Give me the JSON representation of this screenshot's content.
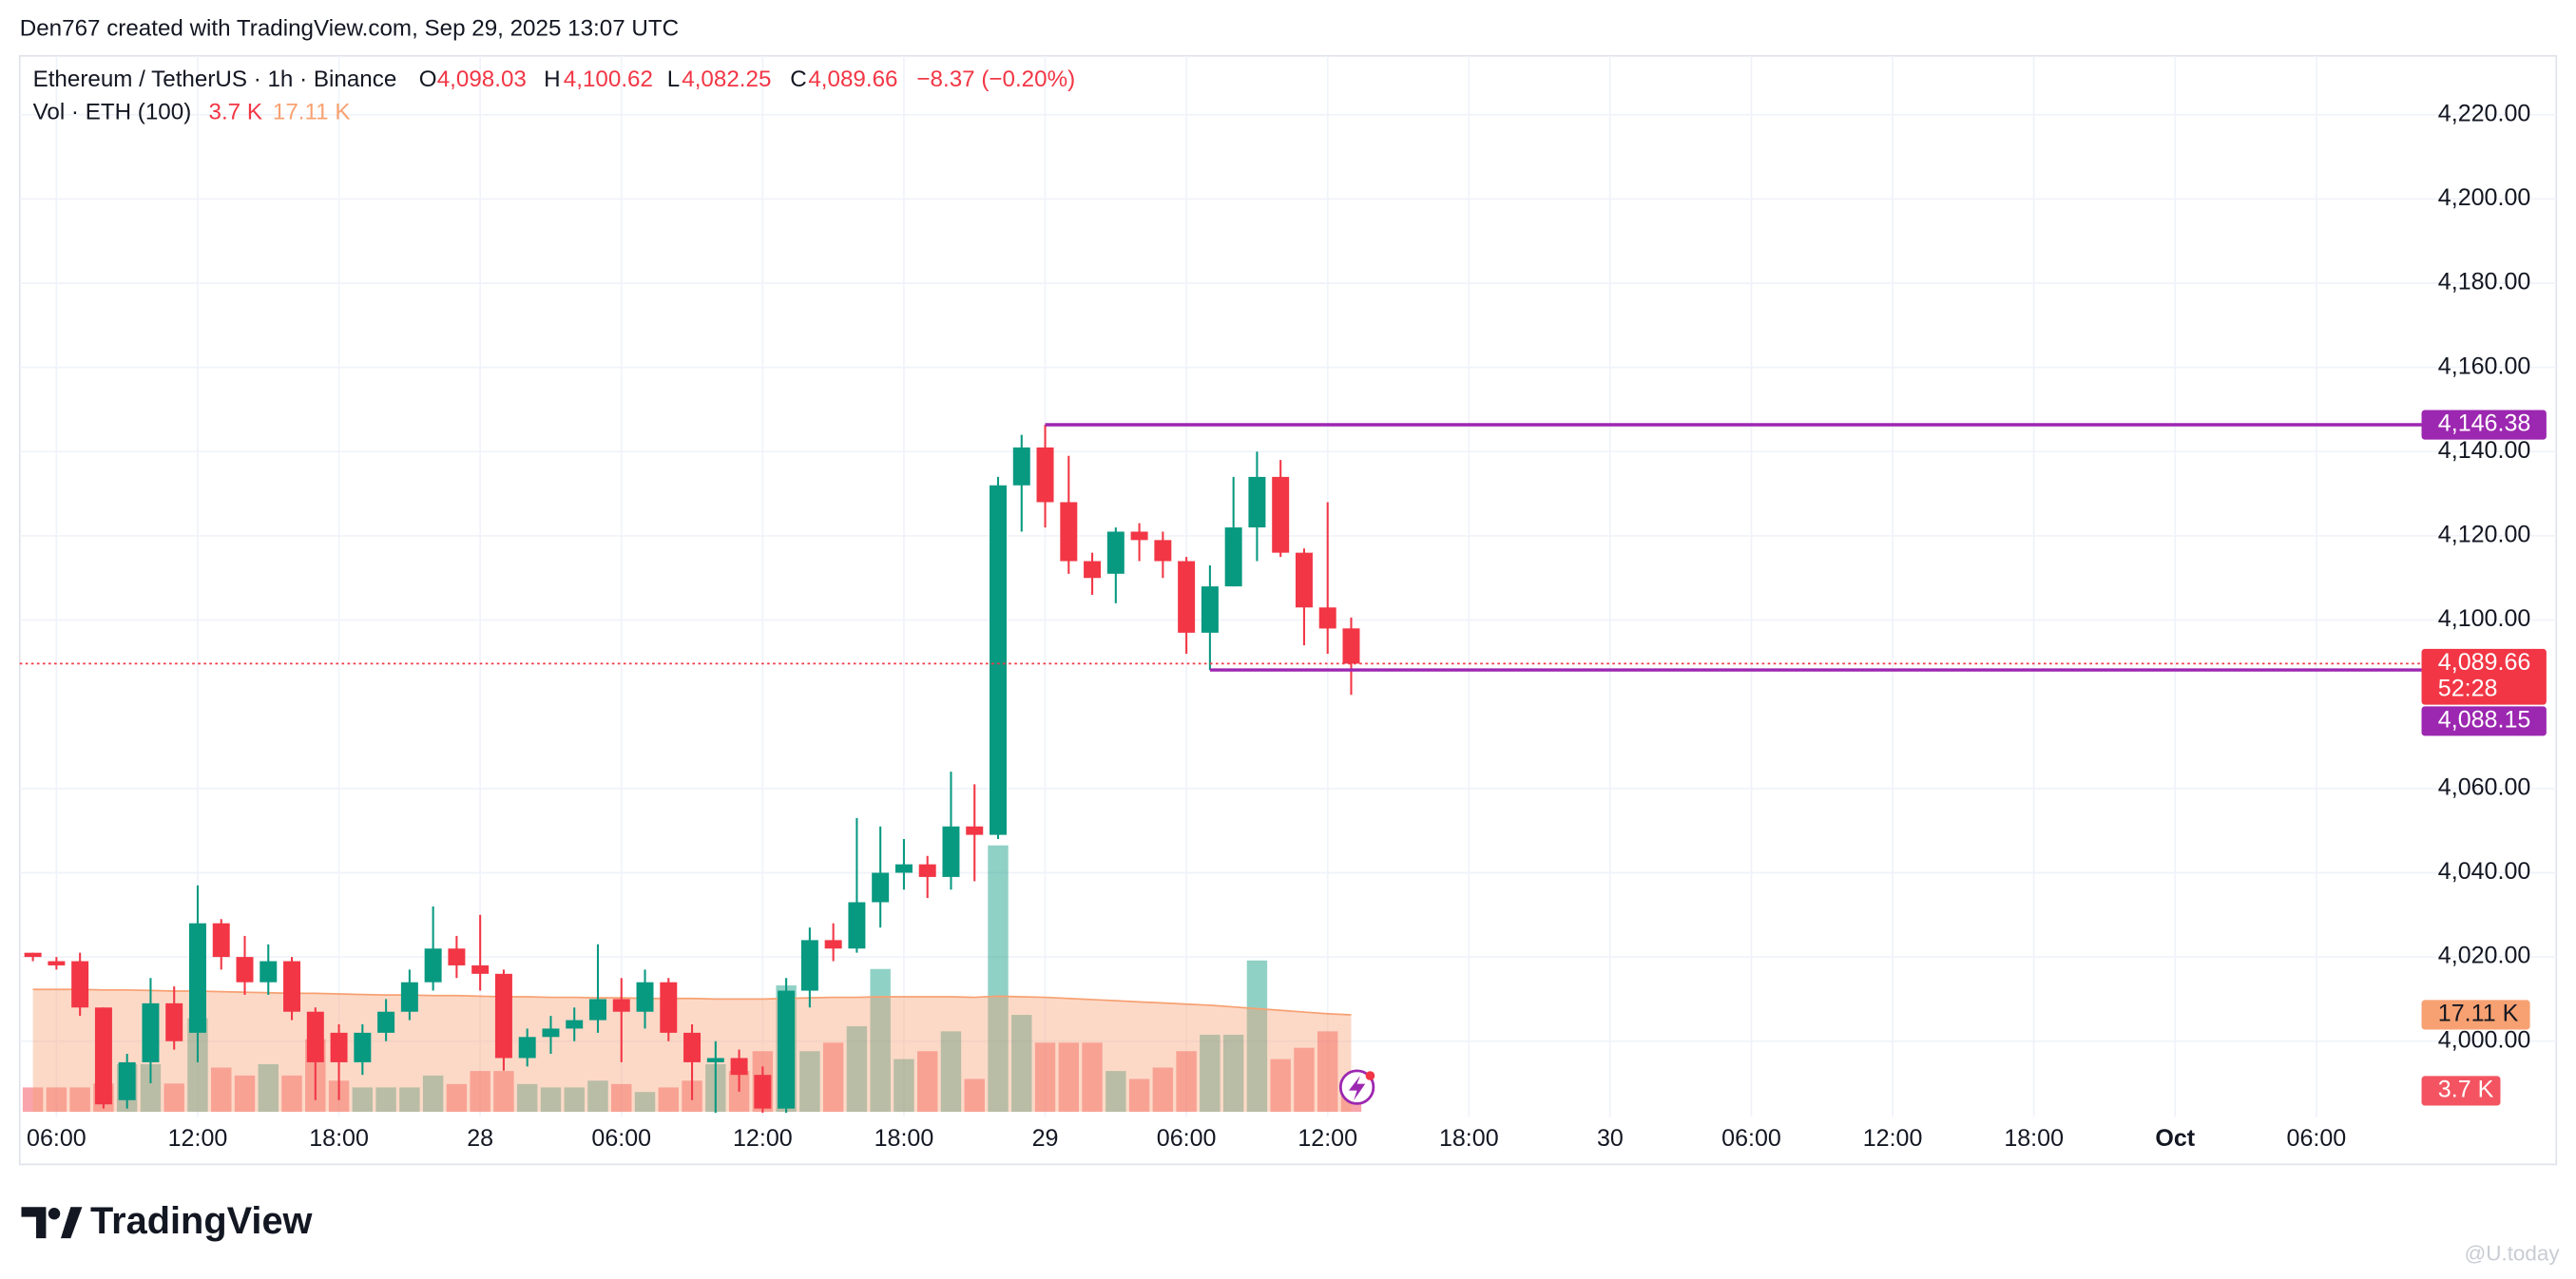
{
  "attribution": "Den767 created with TradingView.com, Sep 29, 2025 13:07 UTC",
  "brand": "TradingView",
  "watermark": "@U.today",
  "chart_data": {
    "type": "candlestick",
    "title": "Ethereum / TetherUS · 1h · Binance",
    "legend": {
      "o": "O",
      "open": "4,098.03",
      "h": "H",
      "high": "4,100.62",
      "l": "L",
      "low": "4,082.25",
      "c": "C",
      "close": "4,089.66",
      "change": "−8.37 (−0.20%)"
    },
    "up_color": "#089981",
    "down_color": "#f23645",
    "candles": {
      "open": [
        4021,
        4019,
        4019,
        4008,
        3986,
        3995,
        4009,
        4002,
        4028,
        4020,
        4014,
        4019,
        4007,
        4002,
        3995,
        4002,
        4007,
        4014,
        4022,
        4018,
        4016,
        3996,
        4001,
        4003,
        4005,
        4010,
        4007,
        4014,
        4002,
        3995,
        3996,
        3992,
        3984,
        4012,
        4024,
        4022,
        4033,
        4040,
        4042,
        4039,
        4051,
        4049,
        4132,
        4141,
        4128,
        4114,
        4111,
        4121,
        4119,
        4114,
        4097,
        4108,
        4122,
        4134,
        4116,
        4103,
        4098.03
      ],
      "high": [
        4021,
        4020,
        4021,
        4008,
        3997,
        4015,
        4013,
        4037,
        4029,
        4025,
        4023,
        4020,
        4008,
        4004,
        4004,
        4010,
        4017,
        4032,
        4025,
        4030,
        4017,
        4003,
        4006,
        4008,
        4023,
        4015,
        4017,
        4015,
        4004,
        4000,
        3998,
        3994,
        4015,
        4027,
        4028,
        4053,
        4051,
        4048,
        4044,
        4064,
        4061,
        4134,
        4144,
        4146.38,
        4139,
        4116,
        4122,
        4123,
        4121,
        4115,
        4113,
        4134,
        4140,
        4138,
        4117,
        4128,
        4100.62
      ],
      "low": [
        4019,
        4017,
        4006,
        3984,
        3984,
        3990,
        3998,
        3995,
        4017,
        4011,
        4011,
        4005,
        3986,
        3986,
        3992,
        4000,
        4005,
        4012,
        4015,
        4012,
        3993,
        3994,
        3997,
        4000,
        4002,
        3995,
        4003,
        4000,
        3986,
        3983,
        3988,
        3983,
        3983,
        4008,
        4019,
        4021,
        4027,
        4036,
        4034,
        4036,
        4038,
        4048,
        4121,
        4122,
        4111,
        4106,
        4104,
        4114,
        4110,
        4092,
        4088.15,
        4108,
        4114,
        4115,
        4094,
        4092,
        4082.25
      ],
      "close": [
        4020,
        4018,
        4008,
        3985,
        3995,
        4009,
        4000,
        4028,
        4020,
        4014,
        4019,
        4007,
        3995,
        3995,
        4002,
        4007,
        4014,
        4022,
        4018,
        4016,
        3996,
        4001,
        4003,
        4005,
        4010,
        4007,
        4014,
        4002,
        3995,
        3996,
        3992,
        3984,
        4012,
        4024,
        4022,
        4033,
        4040,
        4042,
        4039,
        4051,
        4049,
        4132,
        4141,
        4128,
        4114,
        4110,
        4121,
        4119,
        4114,
        4097,
        4108,
        4122,
        4134,
        4116,
        4103,
        4098,
        4089.66
      ]
    },
    "close_label": "4,089.66",
    "countdown": "52:28",
    "volume": {
      "title": "Vol · ETH (100)",
      "values": [
        4.3,
        4.3,
        4.3,
        5,
        8.4,
        8.4,
        5,
        16.5,
        7.8,
        6.4,
        8.4,
        6.4,
        12.8,
        5.5,
        4.3,
        4.3,
        4.3,
        6.4,
        4.9,
        7.2,
        7.2,
        4.9,
        4.3,
        4.3,
        5.5,
        4.9,
        3.5,
        4.3,
        5.5,
        8.4,
        7.2,
        10.7,
        22.3,
        10.7,
        12.2,
        15.1,
        25.2,
        9.3,
        10.7,
        14.2,
        5.8,
        47,
        17.1,
        12.2,
        12.2,
        12.2,
        7.2,
        5.8,
        7.8,
        10.7,
        13.6,
        13.6,
        26.7,
        9.3,
        11.3,
        14.2,
        3.7
      ],
      "last_label": "3.7 K",
      "ma_values": [
        21.6,
        21.6,
        21.6,
        21.5,
        21.5,
        21.4,
        21.3,
        21.3,
        21.2,
        21.1,
        21.0,
        20.9,
        20.9,
        20.8,
        20.7,
        20.6,
        20.6,
        20.5,
        20.5,
        20.4,
        20.3,
        20.3,
        20.2,
        20.2,
        20.1,
        20.1,
        20.0,
        20.0,
        20.0,
        19.9,
        19.9,
        19.9,
        20.0,
        20.1,
        20.2,
        20.2,
        20.3,
        20.3,
        20.3,
        20.3,
        20.2,
        20.4,
        20.3,
        20.2,
        20.0,
        19.8,
        19.6,
        19.4,
        19.2,
        19.0,
        18.8,
        18.5,
        18.2,
        17.9,
        17.6,
        17.3,
        17.11
      ],
      "ma_last_label": "17.11 K",
      "ma_color": "#f7a172",
      "vlim": [
        0,
        186
      ]
    },
    "hlines": [
      {
        "value": 4146.38,
        "label": "4,146.38",
        "color": "#9c27b0"
      },
      {
        "value": 4088.15,
        "label": "4,088.15",
        "color": "#9c27b0"
      }
    ],
    "xlim": [
      -0.56,
      101.05
    ],
    "xticks": [
      {
        "value": 1,
        "label": "06:00"
      },
      {
        "value": 7,
        "label": "12:00"
      },
      {
        "value": 13,
        "label": "18:00"
      },
      {
        "value": 19,
        "label": "28"
      },
      {
        "value": 25,
        "label": "06:00"
      },
      {
        "value": 31,
        "label": "12:00"
      },
      {
        "value": 37,
        "label": "18:00"
      },
      {
        "value": 43,
        "label": "29"
      },
      {
        "value": 49,
        "label": "06:00"
      },
      {
        "value": 55,
        "label": "12:00"
      },
      {
        "value": 61,
        "label": "18:00"
      },
      {
        "value": 67,
        "label": "30"
      },
      {
        "value": 73,
        "label": "06:00"
      },
      {
        "value": 79,
        "label": "12:00"
      },
      {
        "value": 85,
        "label": "18:00"
      },
      {
        "value": 91,
        "label": "Oct"
      },
      {
        "value": 97,
        "label": "06:00"
      }
    ],
    "ylim": [
      3983.23,
      4233.6
    ],
    "yticks": [
      {
        "value": 4000,
        "label": "4,000.00"
      },
      {
        "value": 4020,
        "label": "4,020.00"
      },
      {
        "value": 4040,
        "label": "4,040.00"
      },
      {
        "value": 4060,
        "label": "4,060.00"
      },
      {
        "value": 4100,
        "label": "4,100.00"
      },
      {
        "value": 4120,
        "label": "4,120.00"
      },
      {
        "value": 4140,
        "label": "4,140.00"
      },
      {
        "value": 4160,
        "label": "4,160.00"
      },
      {
        "value": 4180,
        "label": "4,180.00"
      },
      {
        "value": 4200,
        "label": "4,200.00"
      },
      {
        "value": 4220,
        "label": "4,220.00"
      }
    ],
    "grid": true
  }
}
